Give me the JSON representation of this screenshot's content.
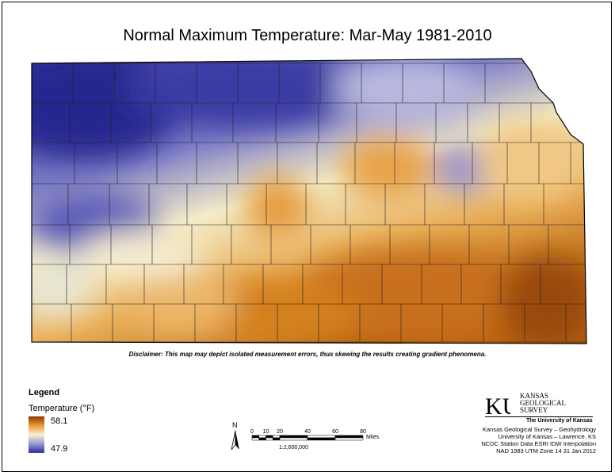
{
  "title": "Normal Maximum Temperature:  Mar-May 1981-2010",
  "disclaimer": "Disclaimer: This map may depict isolated measurement errors, thus skewing the results creating gradient phenomena.",
  "legend": {
    "heading": "Legend",
    "variable": "Temperature (°F)",
    "max": "58.1",
    "min": "47.9",
    "colors": {
      "high": "#8a3a00",
      "mid_high": "#e89a3a",
      "mid": "#f8f0cc",
      "mid_low": "#9a9ad6",
      "low": "#2a2a9a"
    }
  },
  "scale": {
    "ticks": [
      "0",
      "10",
      "20",
      "40",
      "60",
      "80"
    ],
    "unit": "Miles",
    "ratio": "1:2,600,000"
  },
  "north_arrow": "N",
  "logo": {
    "mark": "KU",
    "org_lines": [
      "KANSAS",
      "GEOLOGICAL",
      "SURVEY"
    ],
    "university": "The University of Kansas"
  },
  "credits": [
    "Kansas Geological Survey – Geohydrology",
    "University of Kansas – Lawrence, KS",
    "NCDC Station Data  ESRI IDW Interpolation",
    "NAD 1983 UTM Zone 14  31 Jan 2012"
  ]
}
